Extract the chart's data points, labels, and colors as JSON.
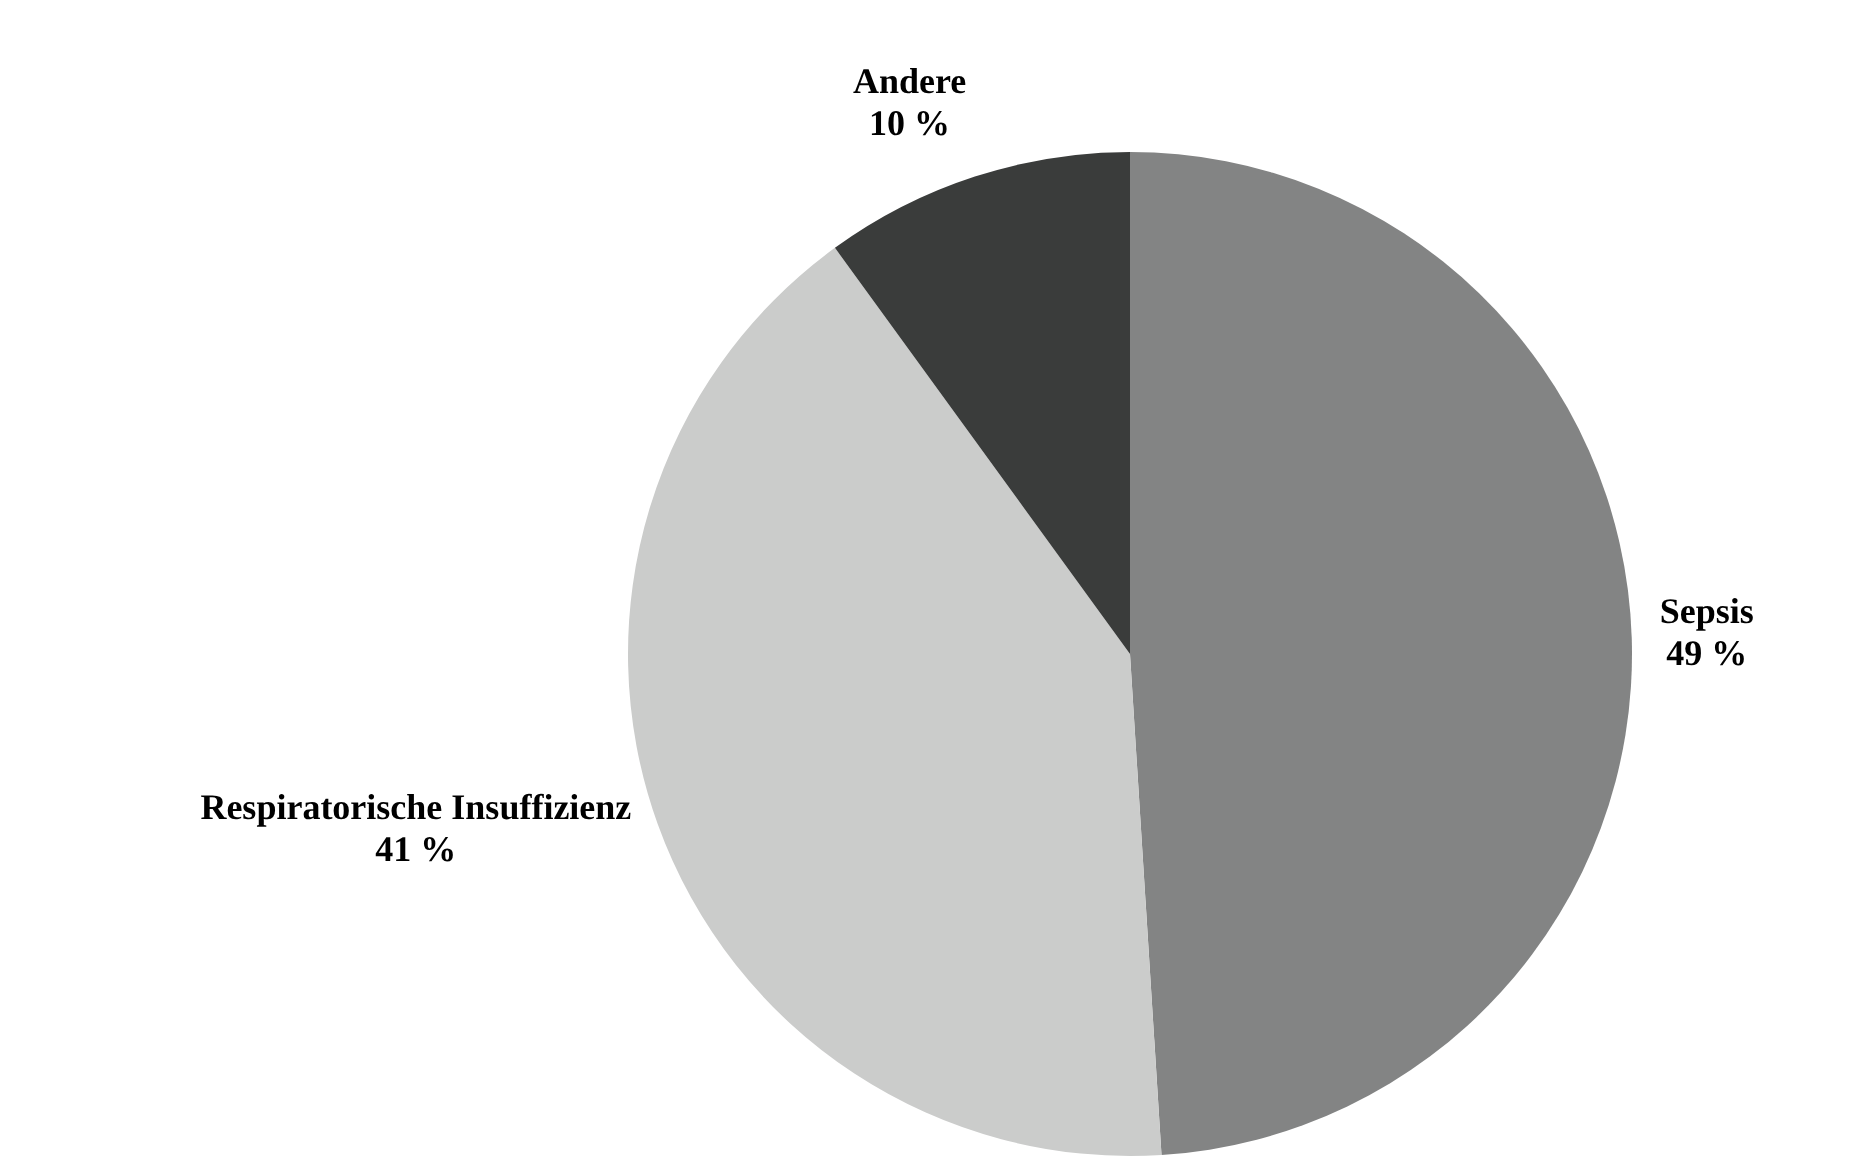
{
  "chart_data": {
    "type": "pie",
    "categories": [
      "Sepsis",
      "Respiratorische Insuffizienz",
      "Andere"
    ],
    "values": [
      49,
      41,
      10
    ],
    "colors": [
      "#838484",
      "#cbcccb",
      "#3a3c3b"
    ],
    "value_labels": [
      "49 %",
      "41 %",
      "10 %"
    ],
    "legend": false
  }
}
